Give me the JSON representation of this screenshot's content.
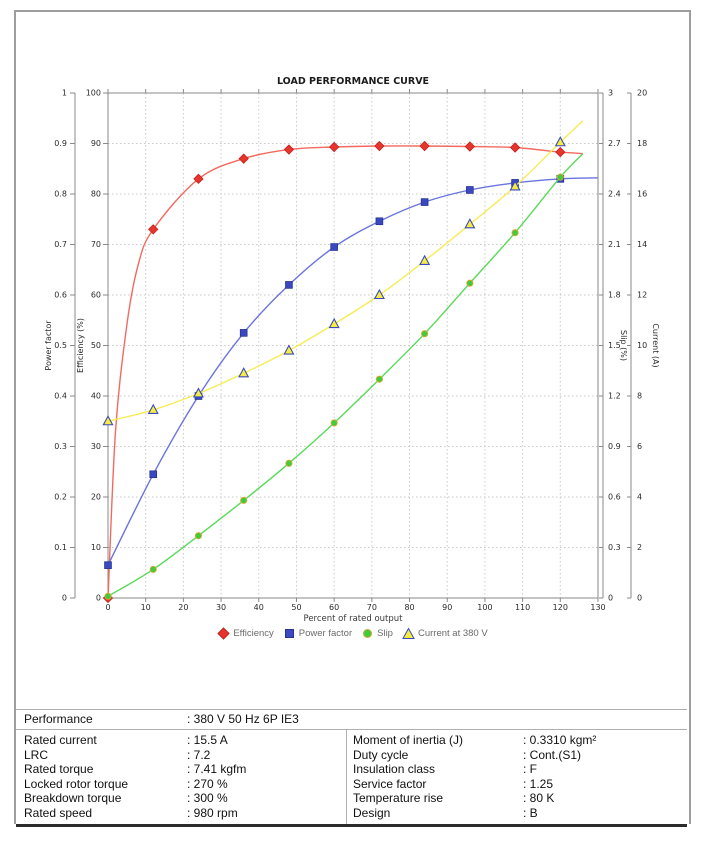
{
  "chart_data": {
    "type": "line",
    "title": "LOAD PERFORMANCE CURVE",
    "xlabel": "Percent of rated output",
    "grid": true,
    "legend_position": "bottom",
    "x": [
      0,
      12,
      24,
      36,
      48,
      60,
      72,
      84,
      96,
      108,
      120
    ],
    "series": [
      {
        "name": "Efficiency",
        "axis": "efficiency",
        "marker": "diamond",
        "line_color": "#f26a60",
        "marker_fill": "#e8352c",
        "marker_stroke": "#c02320",
        "values": [
          0,
          73,
          83,
          87,
          88.8,
          89.3,
          89.5,
          89.5,
          89.4,
          89.2,
          88.3
        ],
        "curve_helper_points": [
          [
            2,
            33
          ],
          [
            5,
            54
          ],
          [
            8,
            66
          ]
        ],
        "curve_end": [
          126,
          88.0
        ]
      },
      {
        "name": "Power factor",
        "axis": "power_factor",
        "marker": "square",
        "line_color": "#6a74dd",
        "marker_fill": "#3a49c1",
        "marker_stroke": "#27338f",
        "values": [
          0.065,
          0.245,
          0.4,
          0.525,
          0.62,
          0.695,
          0.746,
          0.784,
          0.808,
          0.822,
          0.83
        ],
        "curve_helper_points": [],
        "curve_end": [
          130,
          0.832
        ]
      },
      {
        "name": "Slip",
        "axis": "slip",
        "marker": "circle",
        "line_color": "#58da58",
        "marker_fill": "#3ecc3e",
        "marker_stroke": "#d9a62e",
        "values": [
          0.01,
          0.17,
          0.37,
          0.58,
          0.8,
          1.04,
          1.3,
          1.57,
          1.87,
          2.17,
          2.5
        ],
        "curve_helper_points": [],
        "curve_end": [
          126,
          2.64
        ]
      },
      {
        "name": "Current at 380 V",
        "axis": "current",
        "marker": "triangle",
        "line_color": "#f8ec55",
        "marker_fill": "#f6ee3f",
        "marker_stroke": "#3a49c1",
        "values": [
          7.0,
          7.45,
          8.1,
          8.9,
          9.8,
          10.85,
          12.0,
          13.35,
          14.8,
          16.3,
          18.05
        ],
        "curve_helper_points": [],
        "curve_end": [
          126,
          18.9
        ]
      }
    ],
    "axes": {
      "x": {
        "title": "Percent of rated output",
        "min": 0,
        "max": 130,
        "tick_step": 10,
        "ticks": [
          "0",
          "10",
          "20",
          "30",
          "40",
          "50",
          "60",
          "70",
          "80",
          "90",
          "100",
          "110",
          "120",
          "130"
        ]
      },
      "power_factor": {
        "title": "Power factor",
        "min": 0,
        "max": 1,
        "tick_step": 0.1,
        "ticks": [
          "0",
          "0.1",
          "0.2",
          "0.3",
          "0.4",
          "0.5",
          "0.6",
          "0.7",
          "0.8",
          "0.9",
          "1"
        ]
      },
      "efficiency": {
        "title": "Efficiency (%)",
        "min": 0,
        "max": 100,
        "tick_step": 10,
        "ticks": [
          "0",
          "10",
          "20",
          "30",
          "40",
          "50",
          "60",
          "70",
          "80",
          "90",
          "100"
        ]
      },
      "slip": {
        "title": "Slip (%)",
        "min": 0,
        "max": 3,
        "tick_step": 0.3,
        "ticks": [
          "0",
          "0.3",
          "0.6",
          "0.9",
          "1.2",
          "1.5",
          "1.8",
          "2.1",
          "2.4",
          "2.7",
          "3"
        ]
      },
      "current": {
        "title": "Current (A)",
        "min": 0,
        "max": 20,
        "tick_step": 2,
        "ticks": [
          "0",
          "2",
          "4",
          "6",
          "8",
          "10",
          "12",
          "14",
          "16",
          "18",
          "20"
        ]
      }
    }
  },
  "table": {
    "performance_row": {
      "label": "Performance",
      "value": ": 380 V 50 Hz 6P IE3"
    },
    "left_rows": [
      {
        "label": "Rated current",
        "value": ": 15.5 A"
      },
      {
        "label": "LRC",
        "value": ": 7.2"
      },
      {
        "label": "Rated torque",
        "value": ": 7.41 kgfm"
      },
      {
        "label": "Locked rotor torque",
        "value": ": 270 %"
      },
      {
        "label": "Breakdown torque",
        "value": ": 300 %"
      },
      {
        "label": "Rated speed",
        "value": ": 980 rpm"
      }
    ],
    "right_rows": [
      {
        "label": "Moment of inertia (J)",
        "value": ": 0.3310 kgm²"
      },
      {
        "label": "Duty cycle",
        "value": ": Cont.(S1)"
      },
      {
        "label": "Insulation class",
        "value": ": F"
      },
      {
        "label": "Service factor",
        "value": ": 1.25"
      },
      {
        "label": "Temperature rise",
        "value": ": 80 K"
      },
      {
        "label": "Design",
        "value": ": B"
      }
    ]
  },
  "colors": {
    "grid": "#c9c9c9",
    "plot_border": "#8a8a8a",
    "axis_text": "#2b2b2b",
    "legend_text": "#6b6b6b",
    "table_line": "#b0b0b0",
    "table_bottom": "#2b2b2b"
  }
}
